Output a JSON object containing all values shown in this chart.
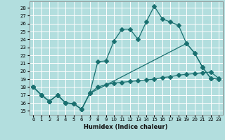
{
  "xlabel": "Humidex (Indice chaleur)",
  "bg_color": "#b2dede",
  "grid_color": "#ffffff",
  "line_color": "#1a7070",
  "xlim": [
    -0.5,
    23.5
  ],
  "ylim": [
    14.5,
    28.8
  ],
  "yticks": [
    15,
    16,
    17,
    18,
    19,
    20,
    21,
    22,
    23,
    24,
    25,
    26,
    27,
    28
  ],
  "xticks": [
    0,
    1,
    2,
    3,
    4,
    5,
    6,
    7,
    8,
    9,
    10,
    11,
    12,
    13,
    14,
    15,
    16,
    17,
    18,
    19,
    20,
    21,
    22,
    23
  ],
  "line1_x": [
    0,
    1,
    2,
    3,
    4,
    5,
    6,
    7,
    8,
    9,
    10,
    11,
    12,
    13,
    14,
    15,
    16,
    17,
    18,
    19,
    20,
    21,
    22,
    23
  ],
  "line1_y": [
    18.0,
    17.0,
    16.2,
    17.0,
    16.0,
    15.9,
    15.2,
    17.2,
    21.2,
    21.3,
    23.8,
    25.3,
    25.3,
    24.0,
    26.2,
    28.2,
    26.6,
    26.2,
    25.8,
    23.5,
    22.3,
    20.5,
    19.1,
    19.0
  ],
  "line2_x": [
    0,
    1,
    2,
    3,
    4,
    5,
    6,
    7,
    19,
    20,
    21,
    22,
    23
  ],
  "line2_y": [
    18.0,
    17.0,
    16.2,
    17.0,
    16.0,
    15.9,
    15.2,
    17.2,
    23.5,
    22.3,
    20.5,
    19.1,
    19.0
  ],
  "line3_x": [
    0,
    1,
    2,
    3,
    4,
    5,
    6,
    7,
    8,
    9,
    10,
    11,
    12,
    13,
    14,
    15,
    16,
    17,
    18,
    19,
    20,
    21,
    22,
    23
  ],
  "line3_y": [
    18.0,
    17.0,
    16.2,
    17.0,
    16.0,
    15.9,
    15.2,
    17.2,
    18.0,
    18.3,
    18.5,
    18.6,
    18.7,
    18.8,
    18.9,
    19.0,
    19.2,
    19.3,
    19.5,
    19.6,
    19.7,
    19.8,
    19.9,
    19.1
  ],
  "marker_size": 3,
  "line_width": 0.9
}
